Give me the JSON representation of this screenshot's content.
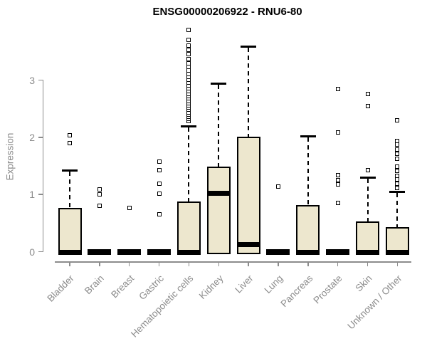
{
  "chart_data": {
    "type": "boxplot",
    "title": "ENSG00000206922 - RNU6-80",
    "ylabel": "Expression",
    "xlabel": "",
    "yticks": [
      0,
      1,
      2,
      3
    ],
    "ylim": [
      0,
      3.9
    ],
    "grid": false,
    "legend": "none",
    "categories": [
      "Bladder",
      "Brain",
      "Breast",
      "Gastric",
      "Hematopoietic cells",
      "Kidney",
      "Liver",
      "Lung",
      "Pancreas",
      "Prostate",
      "Skin",
      "Unknown / Other"
    ],
    "boxes": [
      {
        "category": "Bladder",
        "q1": 0,
        "median": 0,
        "q3": 0.75,
        "whisker_low": 0,
        "whisker_high": 1.43,
        "outliers": [
          1.89,
          2.03
        ]
      },
      {
        "category": "Brain",
        "q1": 0,
        "median": 0,
        "q3": 0,
        "whisker_low": 0,
        "whisker_high": 0,
        "outliers": [
          0.79,
          0.99,
          1.08
        ]
      },
      {
        "category": "Breast",
        "q1": 0,
        "median": 0,
        "q3": 0,
        "whisker_low": 0,
        "whisker_high": 0,
        "outliers": [
          0.76
        ]
      },
      {
        "category": "Gastric",
        "q1": 0,
        "median": 0,
        "q3": 0,
        "whisker_low": 0,
        "whisker_high": 0,
        "outliers": [
          0.64,
          1.01,
          1.18,
          1.41,
          1.57
        ]
      },
      {
        "category": "Hematopoietic cells",
        "q1": 0,
        "median": 0,
        "q3": 0.87,
        "whisker_low": 0,
        "whisker_high": 2.2,
        "outliers": [
          2.27,
          2.31,
          2.35,
          2.39,
          2.43,
          2.47,
          2.51,
          2.55,
          2.59,
          2.63,
          2.67,
          2.71,
          2.75,
          2.8,
          2.85,
          2.9,
          2.95,
          3.0,
          3.05,
          3.1,
          3.16,
          3.22,
          3.28,
          3.36,
          3.44,
          3.52,
          3.6,
          3.7,
          3.87
        ]
      },
      {
        "category": "Kidney",
        "q1": 0,
        "median": 1.01,
        "q3": 1.48,
        "whisker_low": 0,
        "whisker_high": 2.95,
        "outliers": []
      },
      {
        "category": "Liver",
        "q1": 0,
        "median": 0.12,
        "q3": 2.0,
        "whisker_low": 0,
        "whisker_high": 3.6,
        "outliers": []
      },
      {
        "category": "Lung",
        "q1": 0,
        "median": 0,
        "q3": 0,
        "whisker_low": 0,
        "whisker_high": 0,
        "outliers": [
          1.13
        ]
      },
      {
        "category": "Pancreas",
        "q1": 0,
        "median": 0,
        "q3": 0.8,
        "whisker_low": 0,
        "whisker_high": 2.03,
        "outliers": []
      },
      {
        "category": "Prostate",
        "q1": 0,
        "median": 0,
        "q3": 0,
        "whisker_low": 0,
        "whisker_high": 0,
        "outliers": [
          0.84,
          1.17,
          1.24,
          1.33,
          2.07,
          2.83
        ]
      },
      {
        "category": "Skin",
        "q1": 0,
        "median": 0,
        "q3": 0.52,
        "whisker_low": 0,
        "whisker_high": 1.3,
        "outliers": [
          1.42,
          2.54,
          2.75
        ]
      },
      {
        "category": "Unknown / Other",
        "q1": 0,
        "median": 0,
        "q3": 0.42,
        "whisker_low": 0,
        "whisker_high": 1.05,
        "outliers": [
          1.11,
          1.18,
          1.25,
          1.32,
          1.4,
          1.48,
          1.61,
          1.7,
          1.78,
          1.86,
          1.93,
          2.29
        ]
      }
    ],
    "colors": {
      "box_fill": "#ede7ce",
      "box_border": "#000000",
      "median": "#000000",
      "whisker": "#000000",
      "axis": "#8c8c8c",
      "tick_label": "#8c8c8c",
      "title": "#000000",
      "background": "#ffffff"
    }
  }
}
